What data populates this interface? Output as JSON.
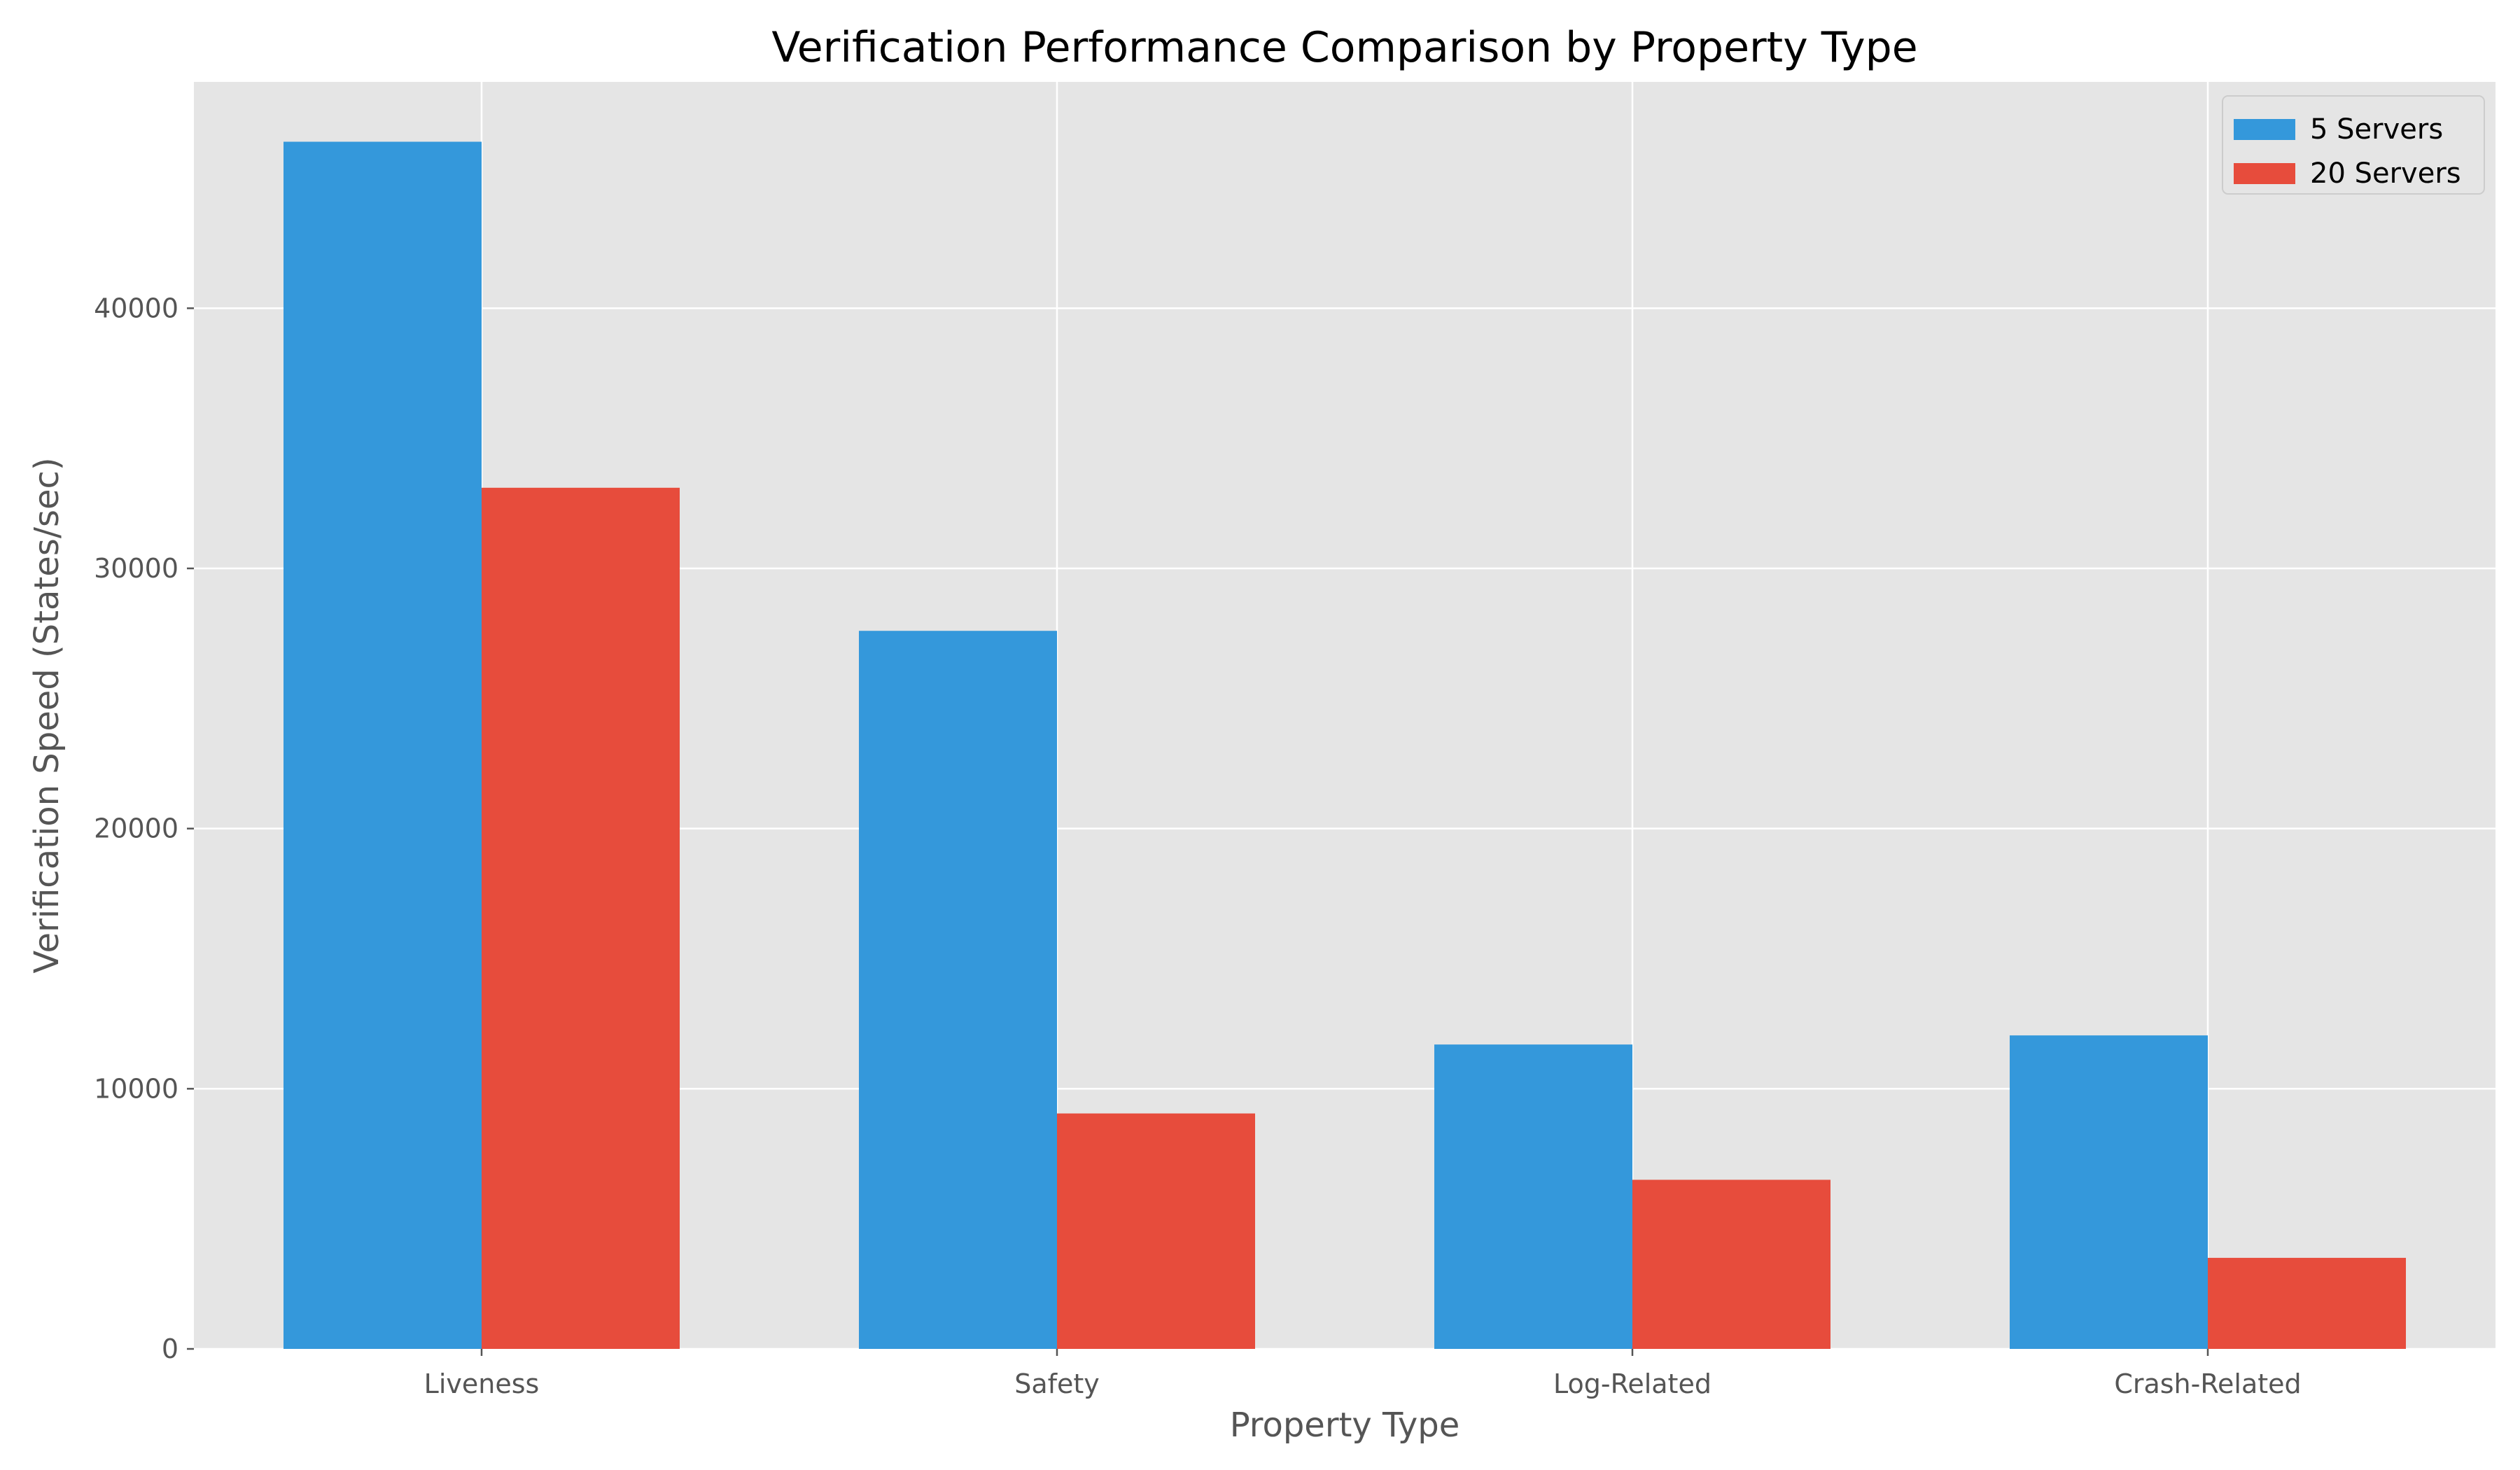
{
  "chart_data": {
    "type": "bar",
    "title": "Verification Performance Comparison by Property Type",
    "xlabel": "Property Type",
    "ylabel": "Verification Speed (States/sec)",
    "categories": [
      "Liveness",
      "Safety",
      "Log-Related",
      "Crash-Related"
    ],
    "series": [
      {
        "name": "5 Servers",
        "color": "#3498db",
        "values": [
          46400,
          27600,
          11700,
          12050
        ]
      },
      {
        "name": "20 Servers",
        "color": "#e74c3c",
        "values": [
          33100,
          9050,
          6500,
          3500
        ]
      }
    ],
    "ylim": [
      0,
      48700
    ],
    "yticks": [
      0,
      10000,
      20000,
      30000,
      40000
    ],
    "grid": true,
    "legend_position": "top-right",
    "colors": {
      "plot_background": "#e5e5e5",
      "grid": "#ffffff"
    }
  }
}
